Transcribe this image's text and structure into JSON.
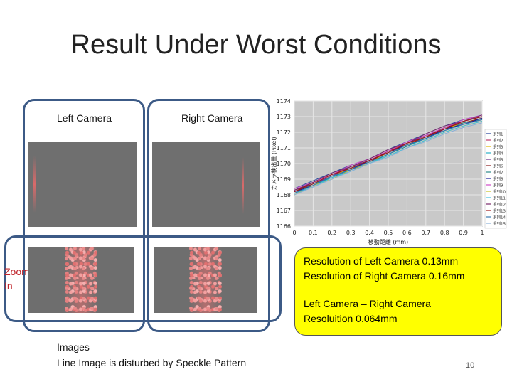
{
  "slide": {
    "title": "Result Under Worst Conditions",
    "left_camera_label": "Left Camera",
    "right_camera_label": "Right Camera",
    "zoom_label_line1": "Zoom",
    "zoom_label_line2": "In",
    "images_caption_line1": "Images",
    "images_caption_line2": "Line Image is disturbed by Speckle Pattern",
    "page_number": "10"
  },
  "callout": {
    "line1": "Resolution of Left Camera 0.13mm",
    "line2": "Resolution of Right Camera 0.16mm",
    "line3": "Left Camera – Right  Camera",
    "line4": "Resoluition  0.064mm"
  },
  "chart_data": {
    "type": "line",
    "ylabel": "カメラ検出量 (Pixel)",
    "xlabel": "移動距離 (mm)",
    "xlim": [
      0,
      1
    ],
    "ylim": [
      1166,
      1174
    ],
    "x_ticks": [
      "0",
      "0.1",
      "0.2",
      "0.3",
      "0.4",
      "0.5",
      "0.6",
      "0.7",
      "0.8",
      "0.9",
      "1"
    ],
    "y_ticks": [
      "1166",
      "1167",
      "1168",
      "1169",
      "1170",
      "1171",
      "1172",
      "1173",
      "1174"
    ],
    "grid": true,
    "legend_position": "right",
    "series": [
      {
        "name": "系列1",
        "color": "#1f3f9a",
        "x": [
          0,
          0.1,
          0.2,
          0.3,
          0.4,
          0.5,
          0.6,
          0.7,
          0.8,
          0.9,
          1.0
        ],
        "y": [
          1168.4,
          1168.9,
          1169.4,
          1169.9,
          1170.3,
          1170.9,
          1171.4,
          1171.9,
          1172.4,
          1172.8,
          1173.1
        ]
      },
      {
        "name": "系列2",
        "color": "#c23a6e",
        "x": [
          0,
          0.1,
          0.2,
          0.3,
          0.4,
          0.5,
          0.6,
          0.7,
          0.8,
          0.9,
          1.0
        ],
        "y": [
          1168.3,
          1168.8,
          1169.3,
          1169.8,
          1170.2,
          1170.8,
          1171.3,
          1171.8,
          1172.3,
          1172.7,
          1173.0
        ]
      },
      {
        "name": "系列3",
        "color": "#e0b800",
        "x": [
          0,
          0.1,
          0.2,
          0.3,
          0.4,
          0.5,
          0.6,
          0.7,
          0.8,
          0.9,
          1.0
        ],
        "y": [
          1168.2,
          1168.7,
          1169.2,
          1169.7,
          1170.1,
          1170.7,
          1171.2,
          1171.7,
          1172.2,
          1172.6,
          1172.9
        ]
      },
      {
        "name": "系列4",
        "color": "#28b0c8",
        "x": [
          0,
          0.1,
          0.2,
          0.3,
          0.4,
          0.5,
          0.6,
          0.7,
          0.8,
          0.9,
          1.0
        ],
        "y": [
          1168.1,
          1168.6,
          1169.1,
          1169.6,
          1170.0,
          1170.6,
          1171.1,
          1171.6,
          1172.1,
          1172.5,
          1172.8
        ]
      },
      {
        "name": "系列5",
        "color": "#6a2a8a",
        "x": [
          0,
          0.1,
          0.2,
          0.3,
          0.4,
          0.5,
          0.6,
          0.7,
          0.8,
          0.9,
          1.0
        ],
        "y": [
          1168.3,
          1168.7,
          1169.2,
          1169.8,
          1170.2,
          1170.7,
          1171.3,
          1171.8,
          1172.2,
          1172.7,
          1173.0
        ]
      },
      {
        "name": "系列6",
        "color": "#8a1a1a",
        "x": [
          0,
          0.1,
          0.2,
          0.3,
          0.4,
          0.5,
          0.6,
          0.7,
          0.8,
          0.9,
          1.0
        ],
        "y": [
          1168.2,
          1168.8,
          1169.3,
          1169.7,
          1170.1,
          1170.8,
          1171.2,
          1171.7,
          1172.3,
          1172.6,
          1172.9
        ]
      },
      {
        "name": "系列7",
        "color": "#2a8a8a",
        "x": [
          0,
          0.1,
          0.2,
          0.3,
          0.4,
          0.5,
          0.6,
          0.7,
          0.8,
          0.9,
          1.0
        ],
        "y": [
          1168.1,
          1168.7,
          1169.1,
          1169.7,
          1170.1,
          1170.6,
          1171.1,
          1171.7,
          1172.1,
          1172.6,
          1172.8
        ]
      },
      {
        "name": "系列8",
        "color": "#1a1a9a",
        "x": [
          0,
          0.1,
          0.2,
          0.3,
          0.4,
          0.5,
          0.6,
          0.7,
          0.8,
          0.9,
          1.0
        ],
        "y": [
          1168.2,
          1168.6,
          1169.2,
          1169.6,
          1170.2,
          1170.7,
          1171.2,
          1171.6,
          1172.2,
          1172.5,
          1172.9
        ]
      },
      {
        "name": "系列9",
        "color": "#d048c8",
        "x": [
          0,
          0.1,
          0.2,
          0.3,
          0.4,
          0.5,
          0.6,
          0.7,
          0.8,
          0.9,
          1.0
        ],
        "y": [
          1168.4,
          1168.8,
          1169.3,
          1169.9,
          1170.3,
          1170.8,
          1171.4,
          1171.8,
          1172.3,
          1172.8,
          1173.1
        ]
      },
      {
        "name": "系列10",
        "color": "#c8c020",
        "x": [
          0,
          0.1,
          0.2,
          0.3,
          0.4,
          0.5,
          0.6,
          0.7,
          0.8,
          0.9,
          1.0
        ],
        "y": [
          1168.0,
          1168.6,
          1169.0,
          1169.6,
          1170.0,
          1170.5,
          1171.0,
          1171.5,
          1172.0,
          1172.4,
          1172.7
        ]
      },
      {
        "name": "系列11",
        "color": "#40c0e0",
        "x": [
          0,
          0.1,
          0.2,
          0.3,
          0.4,
          0.5,
          0.6,
          0.7,
          0.8,
          0.9,
          1.0
        ],
        "y": [
          1168.1,
          1168.5,
          1169.1,
          1169.5,
          1170.0,
          1170.5,
          1171.0,
          1171.5,
          1172.0,
          1172.4,
          1172.7
        ]
      },
      {
        "name": "系列12",
        "color": "#7a2a6a",
        "x": [
          0,
          0.1,
          0.2,
          0.3,
          0.4,
          0.5,
          0.6,
          0.7,
          0.8,
          0.9,
          1.0
        ],
        "y": [
          1168.3,
          1168.8,
          1169.4,
          1169.8,
          1170.3,
          1170.9,
          1171.3,
          1171.9,
          1172.4,
          1172.7,
          1173.1
        ]
      },
      {
        "name": "系列13",
        "color": "#a01818",
        "x": [
          0,
          0.1,
          0.2,
          0.3,
          0.4,
          0.5,
          0.6,
          0.7,
          0.8,
          0.9,
          1.0
        ],
        "y": [
          1168.2,
          1168.7,
          1169.3,
          1169.7,
          1170.2,
          1170.7,
          1171.3,
          1171.7,
          1172.2,
          1172.7,
          1173.0
        ]
      },
      {
        "name": "系列14",
        "color": "#3a7ab0",
        "x": [
          0,
          0.1,
          0.2,
          0.3,
          0.4,
          0.5,
          0.6,
          0.7,
          0.8,
          0.9,
          1.0
        ],
        "y": [
          1168.1,
          1168.6,
          1169.2,
          1169.6,
          1170.1,
          1170.6,
          1171.2,
          1171.6,
          1172.1,
          1172.5,
          1172.8
        ]
      },
      {
        "name": "系列15",
        "color": "#8ab0d8",
        "x": [
          0,
          0.1,
          0.2,
          0.3,
          0.4,
          0.5,
          0.6,
          0.7,
          0.8,
          0.9,
          1.0
        ],
        "y": [
          1168.0,
          1168.5,
          1169.0,
          1169.5,
          1170.0,
          1170.4,
          1171.0,
          1171.4,
          1171.9,
          1172.3,
          1172.6
        ]
      }
    ]
  }
}
